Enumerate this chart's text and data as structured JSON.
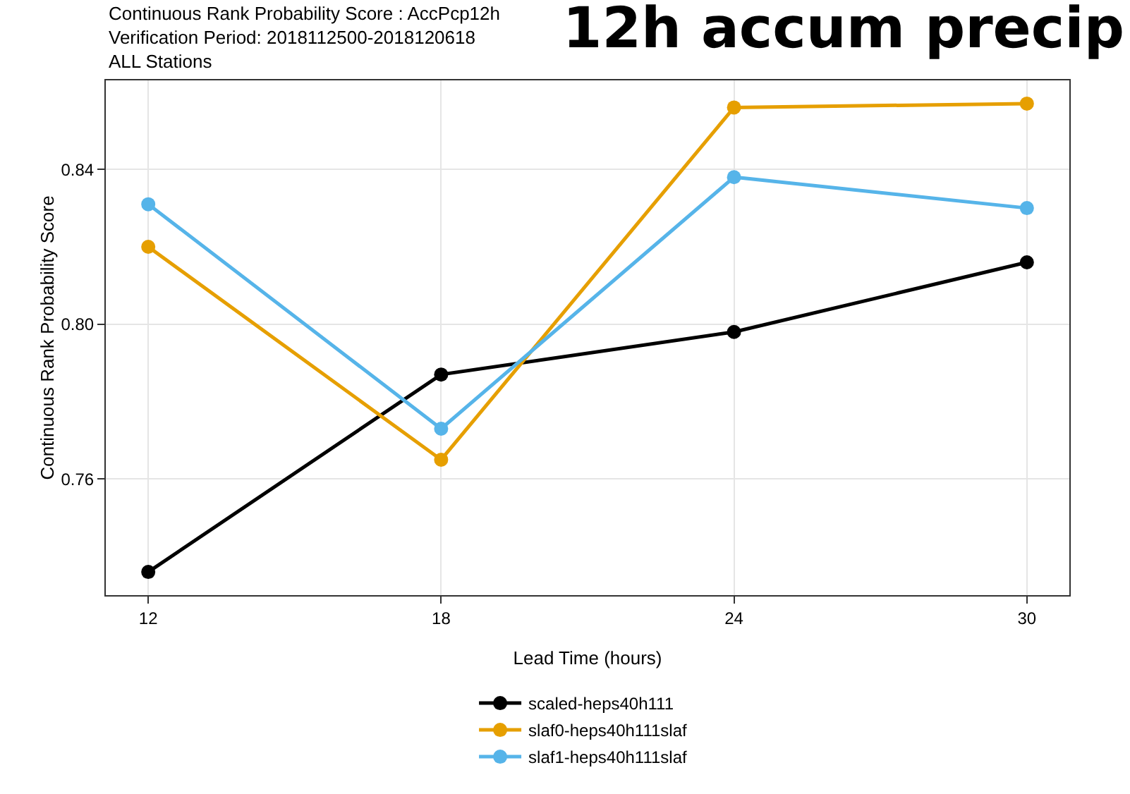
{
  "chart_data": {
    "type": "line",
    "title": "12h accum precip",
    "subtitle": "Continuous Rank Probability Score : AccPcp12h\nVerification Period: 2018112500-2018120618\nALL Stations",
    "xlabel": "Lead Time (hours)",
    "ylabel": "Continuous Rank Probability Score",
    "x": [
      12,
      18,
      24,
      30
    ],
    "series": [
      {
        "name": "scaled-heps40h111",
        "color": "#000000",
        "values": [
          0.736,
          0.787,
          0.798,
          0.816
        ]
      },
      {
        "name": "slaf0-heps40h111slaf",
        "color": "#e69f00",
        "values": [
          0.82,
          0.765,
          0.856,
          0.857
        ]
      },
      {
        "name": "slaf1-heps40h111slaf",
        "color": "#56b4e9",
        "values": [
          0.831,
          0.773,
          0.838,
          0.83
        ]
      }
    ],
    "xlim": [
      11.13,
      30.87
    ],
    "ylim": [
      0.73,
      0.863
    ],
    "xticks": [
      12,
      18,
      24,
      30
    ],
    "yticks": [
      0.76,
      {
        "value": 0.8,
        "label": "0.80"
      },
      0.84
    ],
    "grid": true,
    "legend": "bottom",
    "marker": "circle",
    "line_style": "solid"
  }
}
